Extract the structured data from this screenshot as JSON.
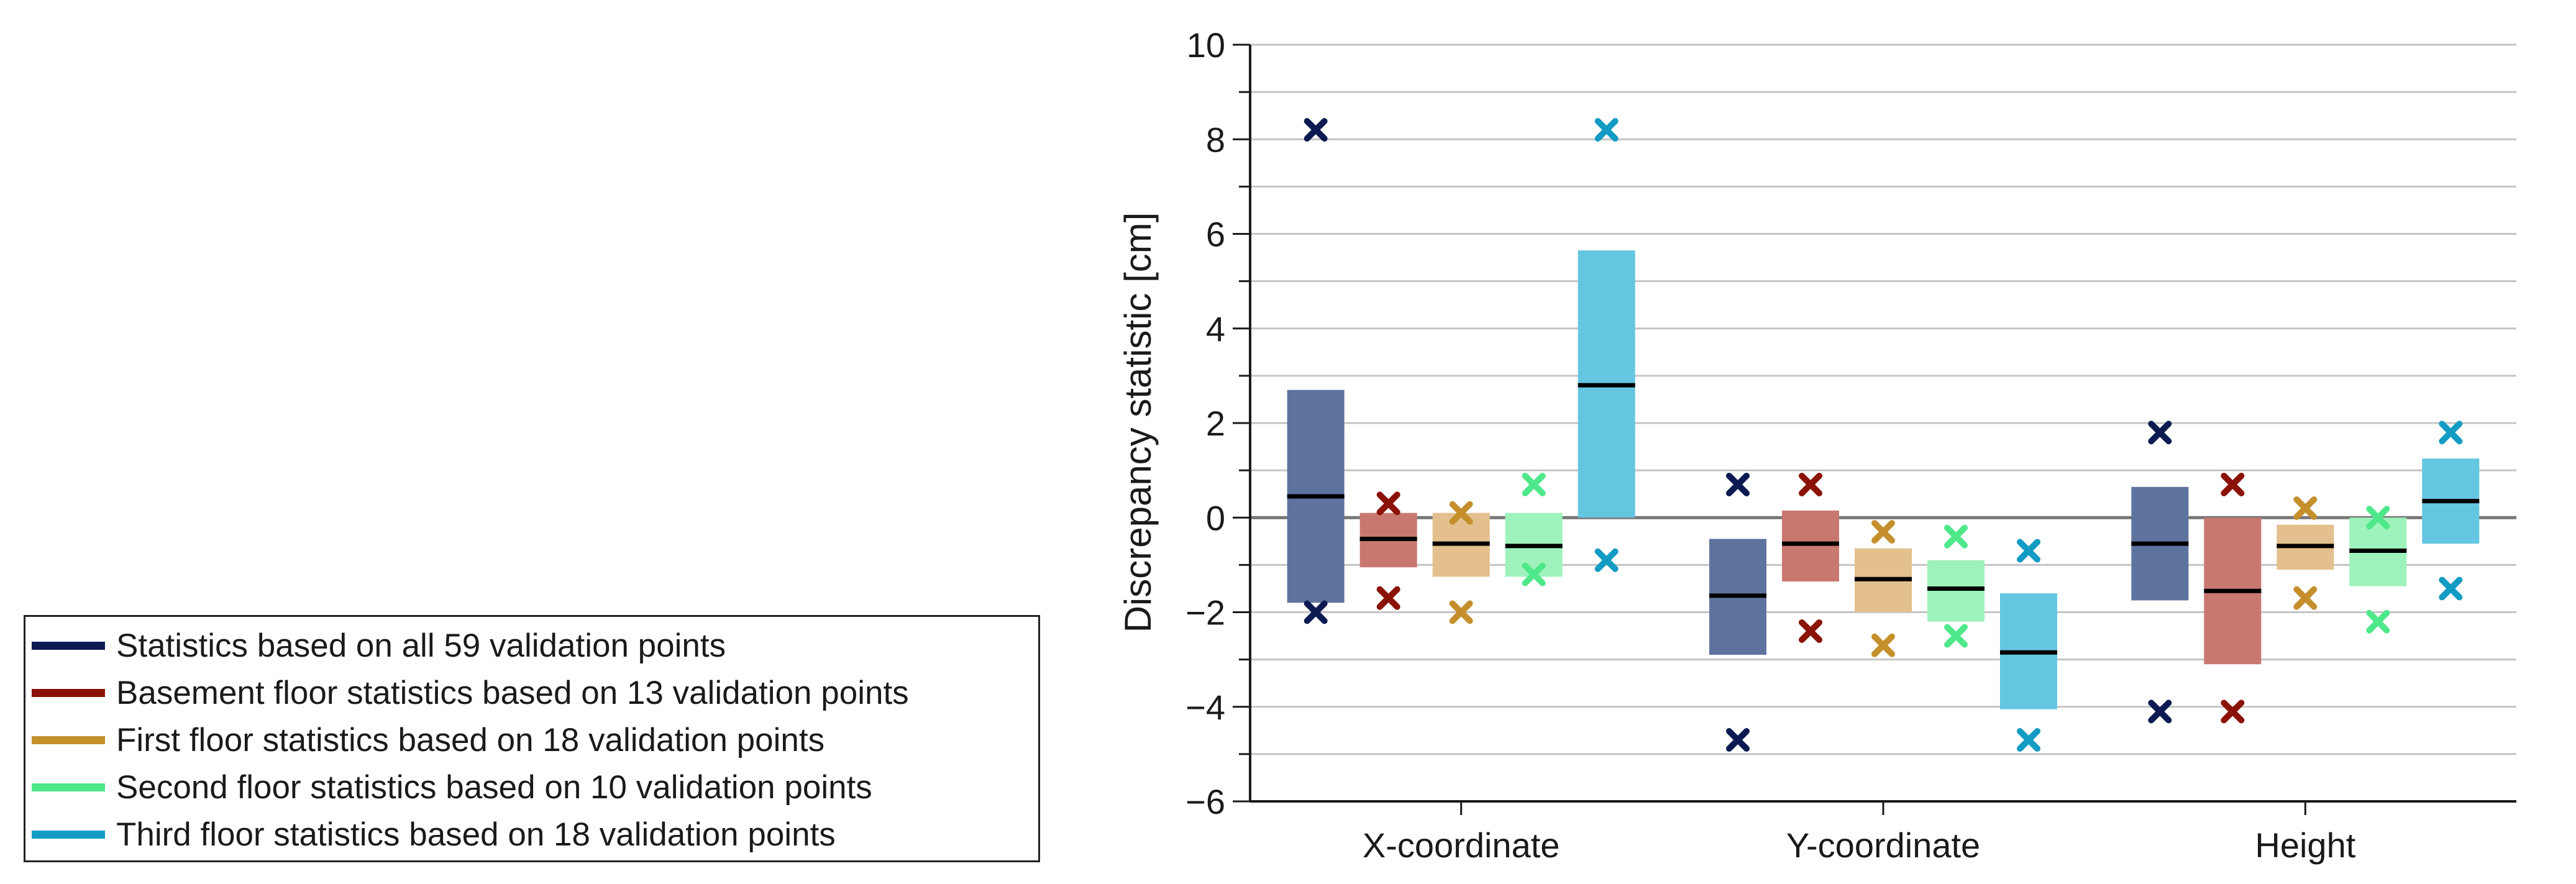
{
  "chart_data": {
    "type": "bar",
    "ylabel": "Discrepancy statistic [cm]",
    "xlabel": "",
    "ylim": [
      -6,
      10
    ],
    "yticks": [
      -6,
      -4,
      -2,
      0,
      2,
      4,
      6,
      8,
      10
    ],
    "grid": true,
    "legend_position": "left",
    "categories": [
      "X-coordinate",
      "Y-coordinate",
      "Height"
    ],
    "marker_symbol": "✕",
    "series": [
      {
        "name": "Statistics based on all 59 validation points",
        "color": "#0d1a52",
        "fill": "#5f739f",
        "bar_low": [
          -1.8,
          -2.9,
          -1.75
        ],
        "bar_high": [
          2.7,
          -0.45,
          0.65
        ],
        "mean": [
          0.45,
          -1.65,
          -0.55
        ],
        "min": [
          -2.0,
          -4.7,
          -4.1
        ],
        "max": [
          8.2,
          0.7,
          1.8
        ]
      },
      {
        "name": "Basement floor statistics based on 13 validation points",
        "color": "#8b1206",
        "fill": "#c97870",
        "bar_low": [
          -1.05,
          -1.35,
          -3.1
        ],
        "bar_high": [
          0.1,
          0.15,
          0.0
        ],
        "mean": [
          -0.45,
          -0.55,
          -1.55
        ],
        "min": [
          -1.7,
          -2.4,
          -4.1
        ],
        "max": [
          0.3,
          0.7,
          0.7
        ]
      },
      {
        "name": "First floor statistics based on 18 validation points",
        "color": "#c58f2c",
        "fill": "#e3c08e",
        "bar_low": [
          -1.25,
          -2.0,
          -1.1
        ],
        "bar_high": [
          0.1,
          -0.65,
          -0.15
        ],
        "mean": [
          -0.55,
          -1.3,
          -0.6
        ],
        "min": [
          -2.0,
          -2.7,
          -1.7
        ],
        "max": [
          0.1,
          -0.3,
          0.2
        ]
      },
      {
        "name": "Second floor statistics based on 10 validation points",
        "color": "#4ee88a",
        "fill": "#9ef2bb",
        "bar_low": [
          -1.25,
          -2.2,
          -1.45
        ],
        "bar_high": [
          0.1,
          -0.9,
          0.0
        ],
        "mean": [
          -0.6,
          -1.5,
          -0.7
        ],
        "min": [
          -1.2,
          -2.5,
          -2.2
        ],
        "max": [
          0.7,
          -0.4,
          0.0
        ]
      },
      {
        "name": "Third floor statistics based on 18 validation points",
        "color": "#129bc3",
        "fill": "#64c6e1",
        "bar_low": [
          0.0,
          -4.05,
          -0.55
        ],
        "bar_high": [
          5.65,
          -1.6,
          1.25
        ],
        "mean": [
          2.8,
          -2.85,
          0.35
        ],
        "min": [
          -0.9,
          -4.7,
          -1.5
        ],
        "max": [
          8.2,
          -0.7,
          1.8
        ]
      }
    ]
  }
}
